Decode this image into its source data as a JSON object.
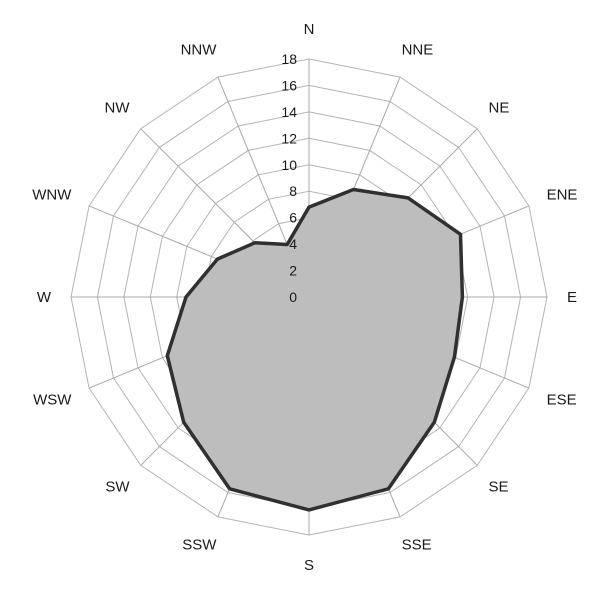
{
  "chart_data": {
    "type": "radar",
    "title": "",
    "categories": [
      "N",
      "NNE",
      "NE",
      "ENE",
      "E",
      "ESE",
      "SE",
      "SSE",
      "S",
      "SSW",
      "SW",
      "WSW",
      "W",
      "WNW",
      "NW",
      "NNW"
    ],
    "series": [
      {
        "values": [
          6.8,
          8.8,
          10.6,
          12.4,
          11.6,
          11.9,
          13.4,
          15.7,
          16.1,
          15.7,
          13.4,
          11.6,
          9.3,
          7.5,
          5.8,
          4.3
        ]
      }
    ],
    "r_ticks": [
      "0",
      "2",
      "4",
      "6",
      "8",
      "10",
      "12",
      "14",
      "16",
      "18"
    ],
    "r_range": [
      0,
      18
    ],
    "grid": true,
    "legend": "none",
    "colors": {
      "fill": "#bdbdbd",
      "stroke": "#303030",
      "grid": "#b4b4b4"
    }
  }
}
